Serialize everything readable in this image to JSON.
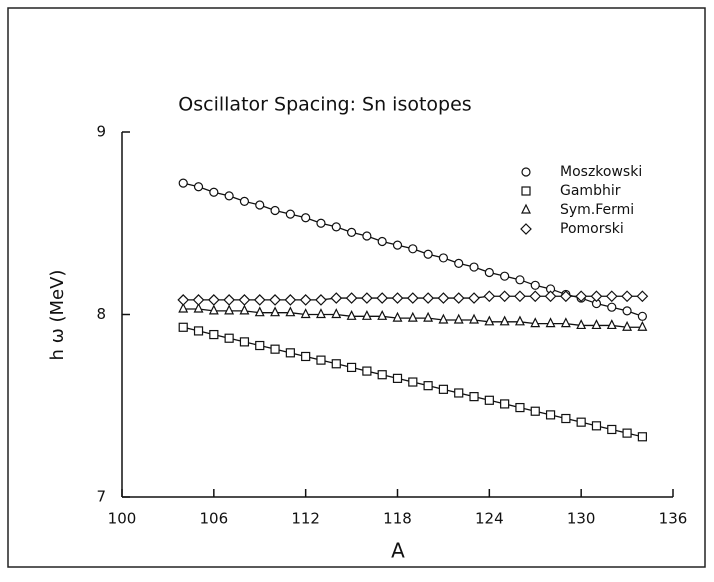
{
  "chart_data": {
    "type": "scatter",
    "title": "Oscillator Spacing: Sn isotopes",
    "xlabel": "A",
    "ylabel": "h ω (MeV)",
    "x": [
      104,
      105,
      106,
      107,
      108,
      109,
      110,
      111,
      112,
      113,
      114,
      115,
      116,
      117,
      118,
      119,
      120,
      121,
      122,
      123,
      124,
      125,
      126,
      127,
      128,
      129,
      130,
      131,
      132,
      133,
      134
    ],
    "series": [
      {
        "name": "Moszkowski",
        "marker": "circle",
        "color": "#111111",
        "values": [
          8.72,
          8.7,
          8.67,
          8.65,
          8.62,
          8.6,
          8.57,
          8.55,
          8.53,
          8.5,
          8.48,
          8.45,
          8.43,
          8.4,
          8.38,
          8.36,
          8.33,
          8.31,
          8.28,
          8.26,
          8.23,
          8.21,
          8.19,
          8.16,
          8.14,
          8.11,
          8.09,
          8.06,
          8.04,
          8.02,
          7.99
        ]
      },
      {
        "name": "Gambhir",
        "marker": "square",
        "color": "#111111",
        "values": [
          7.93,
          7.91,
          7.89,
          7.87,
          7.85,
          7.83,
          7.81,
          7.79,
          7.77,
          7.75,
          7.73,
          7.71,
          7.69,
          7.67,
          7.65,
          7.63,
          7.61,
          7.59,
          7.57,
          7.55,
          7.53,
          7.51,
          7.49,
          7.47,
          7.45,
          7.43,
          7.41,
          7.39,
          7.37,
          7.35,
          7.33
        ]
      },
      {
        "name": "Sym.Fermi",
        "marker": "triangle",
        "color": "#111111",
        "values": [
          8.03,
          8.03,
          8.02,
          8.02,
          8.02,
          8.01,
          8.01,
          8.01,
          8.0,
          8.0,
          8.0,
          7.99,
          7.99,
          7.99,
          7.98,
          7.98,
          7.98,
          7.97,
          7.97,
          7.97,
          7.96,
          7.96,
          7.96,
          7.95,
          7.95,
          7.95,
          7.94,
          7.94,
          7.94,
          7.93,
          7.93
        ]
      },
      {
        "name": "Pomorski",
        "marker": "diamond",
        "color": "#111111",
        "values": [
          8.08,
          8.08,
          8.08,
          8.08,
          8.08,
          8.08,
          8.08,
          8.08,
          8.08,
          8.08,
          8.09,
          8.09,
          8.09,
          8.09,
          8.09,
          8.09,
          8.09,
          8.09,
          8.09,
          8.09,
          8.1,
          8.1,
          8.1,
          8.1,
          8.1,
          8.1,
          8.1,
          8.1,
          8.1,
          8.1,
          8.1
        ]
      }
    ],
    "xlim": [
      100,
      136
    ],
    "xticks": [
      100,
      106,
      112,
      118,
      124,
      130,
      136
    ],
    "ylim": [
      7,
      9
    ],
    "yticks": [
      7,
      8,
      9
    ],
    "legend": "upper right"
  }
}
